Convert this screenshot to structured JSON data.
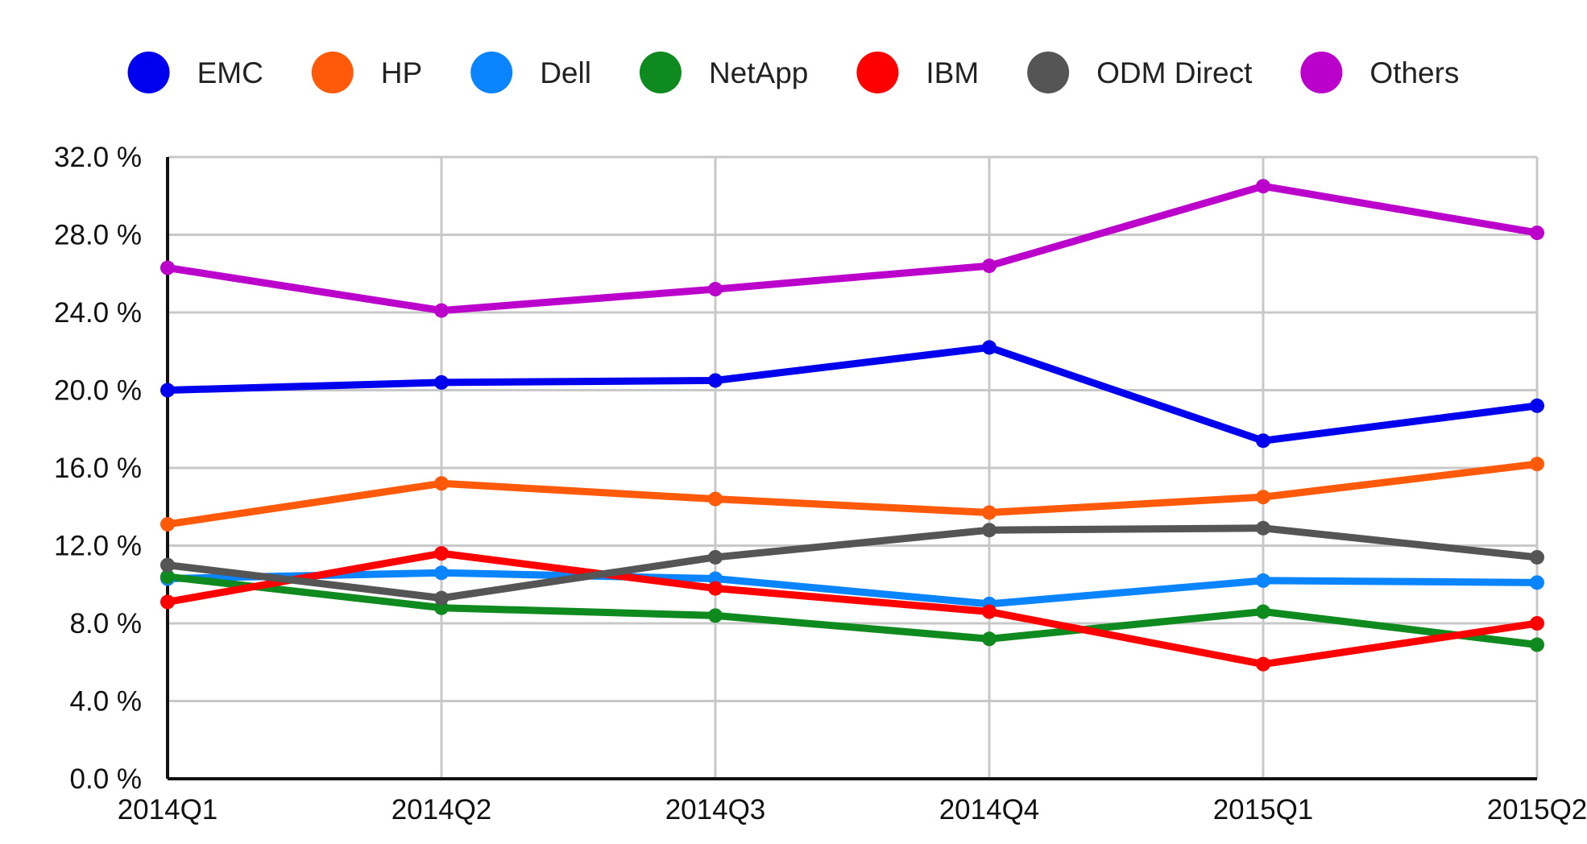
{
  "chart_data": {
    "type": "line",
    "title": "",
    "xlabel": "",
    "ylabel": "",
    "categories": [
      "2014Q1",
      "2014Q2",
      "2014Q3",
      "2014Q4",
      "2015Q1",
      "2015Q2"
    ],
    "ylim": [
      0,
      32
    ],
    "yticks": [
      {
        "value": 0,
        "label": "0.0 %"
      },
      {
        "value": 4,
        "label": "4.0 %"
      },
      {
        "value": 8,
        "label": "8.0 %"
      },
      {
        "value": 12,
        "label": "12.0 %"
      },
      {
        "value": 16,
        "label": "16.0 %"
      },
      {
        "value": 20,
        "label": "20.0 %"
      },
      {
        "value": 24,
        "label": "24.0 %"
      },
      {
        "value": 28,
        "label": "28.0 %"
      },
      {
        "value": 32,
        "label": "32.0 %"
      }
    ],
    "grid": true,
    "legend_position": "top",
    "series": [
      {
        "name": "EMC",
        "color": "#0000ee",
        "values": [
          20.0,
          20.4,
          20.5,
          22.2,
          17.4,
          19.2
        ]
      },
      {
        "name": "HP",
        "color": "#ff5a0a",
        "values": [
          13.1,
          15.2,
          14.4,
          13.7,
          14.5,
          16.2
        ]
      },
      {
        "name": "Dell",
        "color": "#0a84ff",
        "values": [
          10.3,
          10.6,
          10.3,
          9.0,
          10.2,
          10.1
        ]
      },
      {
        "name": "NetApp",
        "color": "#0f8a1e",
        "values": [
          10.4,
          8.8,
          8.4,
          7.2,
          8.6,
          6.9
        ]
      },
      {
        "name": "IBM",
        "color": "#ff0000",
        "values": [
          9.1,
          11.6,
          9.8,
          8.6,
          5.9,
          8.0
        ]
      },
      {
        "name": "ODM Direct",
        "color": "#555555",
        "values": [
          11.0,
          9.3,
          11.4,
          12.8,
          12.9,
          11.4
        ]
      },
      {
        "name": "Others",
        "color": "#bb00cc",
        "values": [
          26.3,
          24.1,
          25.2,
          26.4,
          30.5,
          28.1
        ]
      }
    ]
  }
}
